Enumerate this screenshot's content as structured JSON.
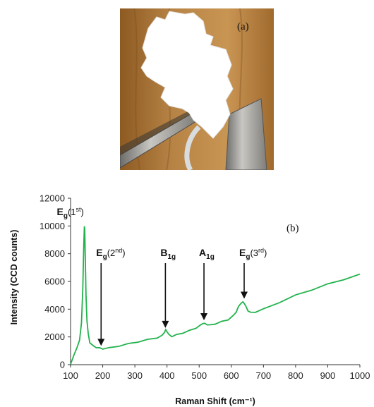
{
  "photo": {
    "panel_label": "(a)",
    "colors": {
      "wood": "#b07a38",
      "flake": "#ffffff",
      "tweezer": "#9a9a98",
      "ring": "#cfd3d6"
    }
  },
  "chart_data": {
    "type": "line",
    "panel_label": "(b)",
    "title": "",
    "xlabel": "Raman Shift (cm⁻¹)",
    "ylabel": "Intensity (CCD counts)",
    "xlim": [
      100,
      1000
    ],
    "ylim": [
      0,
      12000
    ],
    "xticks": [
      100,
      200,
      300,
      400,
      500,
      600,
      700,
      800,
      900,
      1000
    ],
    "yticks": [
      0,
      2000,
      4000,
      6000,
      8000,
      10000,
      12000
    ],
    "grid": false,
    "line_color": "#22b24c",
    "series": [
      {
        "x": [
          100,
          110,
          120,
          128,
          134,
          138,
          141,
          143,
          144,
          146,
          148,
          151,
          155,
          160,
          170,
          180,
          190,
          200,
          220,
          250,
          280,
          310,
          340,
          370,
          385,
          392,
          396,
          400,
          406,
          415,
          430,
          450,
          470,
          490,
          505,
          512,
          518,
          525,
          535,
          550,
          570,
          590,
          605,
          615,
          622,
          630,
          636,
          640,
          645,
          652,
          660,
          675,
          700,
          750,
          800,
          850,
          900,
          950,
          1000
        ],
        "y": [
          0,
          700,
          1200,
          1800,
          3000,
          5500,
          8500,
          10000,
          9800,
          7500,
          5000,
          3200,
          2200,
          1600,
          1350,
          1250,
          1200,
          1150,
          1200,
          1350,
          1500,
          1650,
          1800,
          1950,
          2100,
          2350,
          2500,
          2400,
          2150,
          2050,
          2150,
          2300,
          2450,
          2650,
          2850,
          3000,
          2950,
          2900,
          2850,
          2950,
          3100,
          3250,
          3500,
          3800,
          4150,
          4450,
          4500,
          4450,
          4200,
          3900,
          3750,
          3800,
          4000,
          4500,
          5000,
          5400,
          5800,
          6150,
          6500
        ]
      }
    ],
    "annotations": [
      {
        "base": "E",
        "sub": "g",
        "paren": "(1",
        "sup": "st",
        "close": ")",
        "x": 145,
        "arrow": false
      },
      {
        "base": "E",
        "sub": "g",
        "paren": "(2",
        "sup": "nd",
        "close": ")",
        "x": 195,
        "arrow": true,
        "tip_y": 1150
      },
      {
        "base": "B",
        "sub": "1g",
        "paren": "",
        "sup": "",
        "close": "",
        "x": 395,
        "arrow": true,
        "tip_y": 2450
      },
      {
        "base": "A",
        "sub": "1g",
        "paren": "",
        "sup": "",
        "close": "",
        "x": 515,
        "arrow": true,
        "tip_y": 3000
      },
      {
        "base": "E",
        "sub": "g",
        "paren": "(3",
        "sup": "rd",
        "close": ")",
        "x": 640,
        "arrow": true,
        "tip_y": 4550
      }
    ]
  }
}
